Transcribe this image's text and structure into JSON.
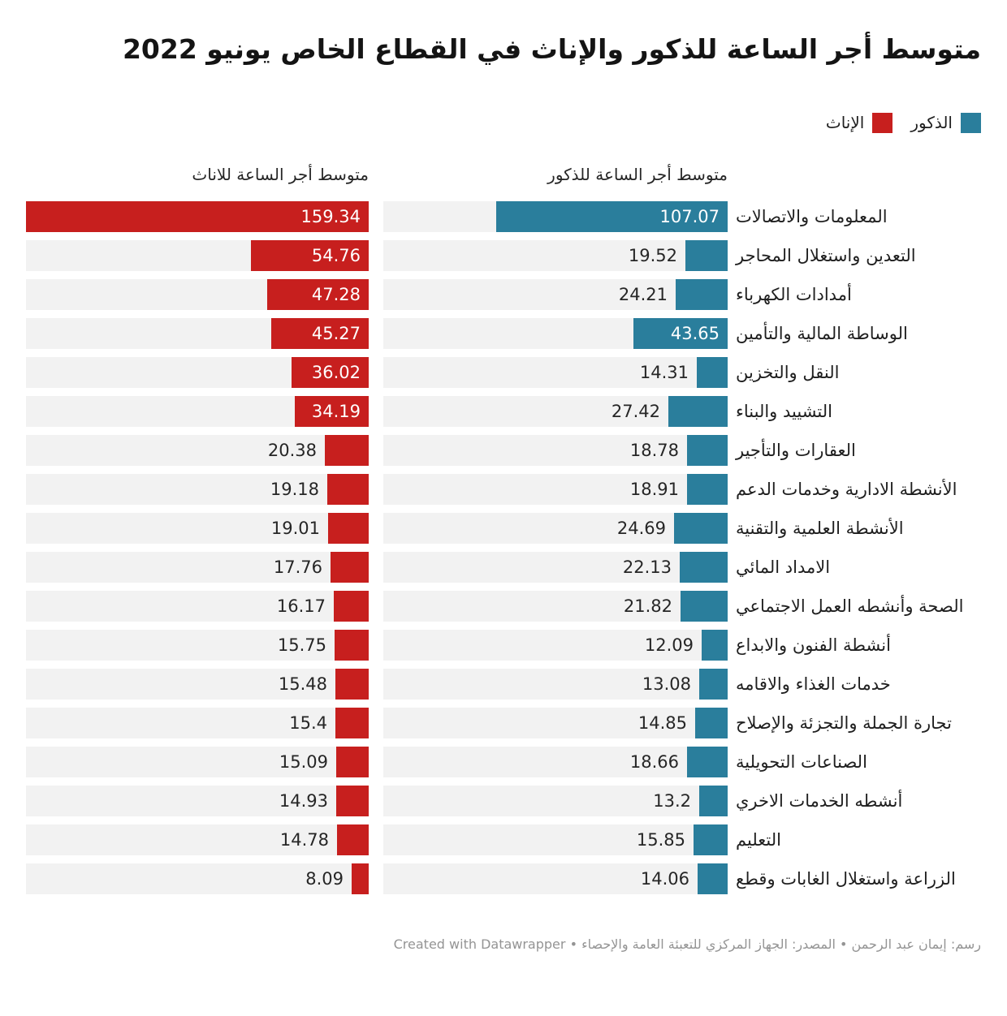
{
  "title": "متوسط أجر الساعة للذكور والإناث في القطاع الخاص يونيو 2022",
  "legend": {
    "male_label": "الذكور",
    "female_label": "الإناث"
  },
  "columns": {
    "female_header": "متوسط أجر الساعة للاناث",
    "male_header": "متوسط أجر الساعة للذكور"
  },
  "footer": {
    "credit": "رسم: إيمان عبد الرحمن • المصدر: الجهاز المركزي للتعبئة العامة والإحصاء •",
    "datawrapper": "Created with Datawrapper"
  },
  "colors": {
    "male": "#2A7E9C",
    "female": "#C71F1E",
    "track": "#F2F2F2"
  },
  "chart_data": {
    "type": "bar",
    "layout": "two side-by-side horizontal bar panels, RTL, bars anchored at right edge of each panel, shared scale, gray full-width track behind each bar, value labels inside bar when fitting else outside left",
    "max_value": 159.34,
    "xlim": [
      0,
      159.34
    ],
    "grid": false,
    "categories": [
      "المعلومات والاتصالات",
      "التعدين واستغلال المحاجر",
      "أمدادات الكهرباء",
      "الوساطة المالية والتأمين",
      "النقل والتخزين",
      "التشييد والبناء",
      "العقارات والتأجير",
      "الأنشطة الادارية وخدمات الدعم",
      "الأنشطة العلمية والتقنية",
      "الامداد المائي",
      "الصحة وأنشطه العمل الاجتماعي",
      "أنشطة الفنون والابداع",
      "خدمات الغذاء والاقامه",
      "تجارة الجملة والتجزئة والإصلاح",
      "الصناعات التحويلية",
      "أنشطه الخدمات الاخري",
      "التعليم",
      "الزراعة واستغلال الغابات وقطع"
    ],
    "series": [
      {
        "key": "male",
        "name": "الذكور",
        "color": "#2A7E9C",
        "values": [
          107.07,
          19.52,
          24.21,
          43.65,
          14.31,
          27.42,
          18.78,
          18.91,
          24.69,
          22.13,
          21.82,
          12.09,
          13.08,
          14.85,
          18.66,
          13.2,
          15.85,
          14.06
        ]
      },
      {
        "key": "female",
        "name": "الإناث",
        "color": "#C71F1E",
        "values": [
          159.34,
          54.76,
          47.28,
          45.27,
          36.02,
          34.19,
          20.38,
          19.18,
          19.01,
          17.76,
          16.17,
          15.75,
          15.48,
          15.4,
          15.09,
          14.93,
          14.78,
          8.09
        ]
      }
    ]
  }
}
